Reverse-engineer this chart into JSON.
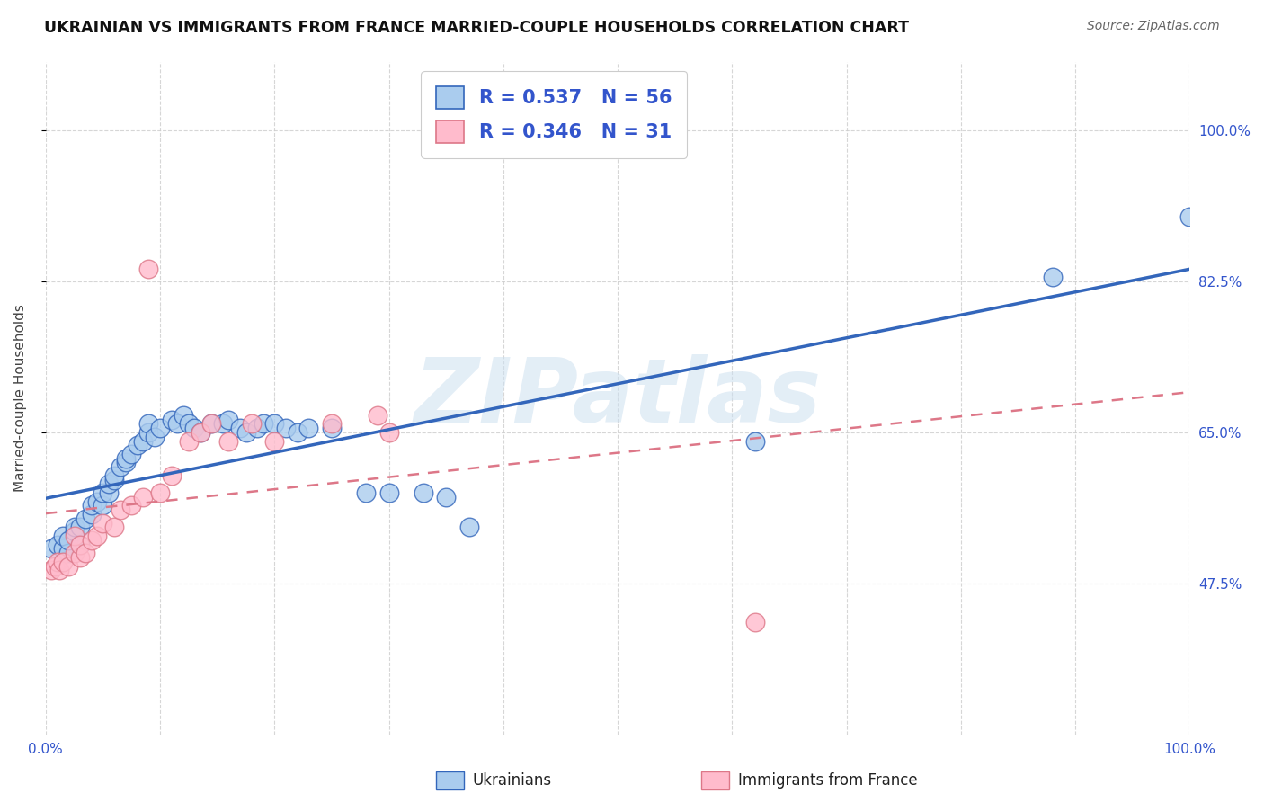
{
  "title": "UKRAINIAN VS IMMIGRANTS FROM FRANCE MARRIED-COUPLE HOUSEHOLDS CORRELATION CHART",
  "source": "Source: ZipAtlas.com",
  "ylabel": "Married-couple Households",
  "yticks_labels": [
    "47.5%",
    "65.0%",
    "82.5%",
    "100.0%"
  ],
  "ytick_vals": [
    0.475,
    0.65,
    0.825,
    1.0
  ],
  "xlim": [
    0.0,
    1.0
  ],
  "ylim": [
    0.3,
    1.08
  ],
  "blue_R": 0.537,
  "blue_N": 56,
  "pink_R": 0.346,
  "pink_N": 31,
  "blue_scatter_color": "#aaccee",
  "pink_scatter_color": "#ffbbcc",
  "blue_line_color": "#3366bb",
  "pink_line_color": "#dd7788",
  "legend_text_color": "#3355cc",
  "watermark_color": "#cce0f0",
  "background_color": "#ffffff",
  "grid_color": "#cccccc",
  "title_color": "#111111",
  "source_color": "#666666",
  "axis_label_color": "#3355cc",
  "ylabel_color": "#444444",
  "blue_scatter_x": [
    0.005,
    0.01,
    0.015,
    0.015,
    0.02,
    0.02,
    0.025,
    0.025,
    0.03,
    0.03,
    0.035,
    0.04,
    0.04,
    0.045,
    0.05,
    0.05,
    0.055,
    0.055,
    0.06,
    0.06,
    0.065,
    0.07,
    0.07,
    0.075,
    0.08,
    0.085,
    0.09,
    0.09,
    0.095,
    0.1,
    0.11,
    0.115,
    0.12,
    0.125,
    0.13,
    0.135,
    0.145,
    0.155,
    0.16,
    0.17,
    0.175,
    0.185,
    0.19,
    0.2,
    0.21,
    0.22,
    0.23,
    0.25,
    0.28,
    0.3,
    0.33,
    0.35,
    0.37,
    0.62,
    0.88,
    1.0
  ],
  "blue_scatter_y": [
    0.515,
    0.52,
    0.515,
    0.53,
    0.51,
    0.525,
    0.535,
    0.54,
    0.52,
    0.54,
    0.55,
    0.555,
    0.565,
    0.57,
    0.565,
    0.58,
    0.58,
    0.59,
    0.595,
    0.6,
    0.61,
    0.615,
    0.62,
    0.625,
    0.635,
    0.64,
    0.65,
    0.66,
    0.645,
    0.655,
    0.665,
    0.66,
    0.67,
    0.66,
    0.655,
    0.65,
    0.66,
    0.66,
    0.665,
    0.655,
    0.65,
    0.655,
    0.66,
    0.66,
    0.655,
    0.65,
    0.655,
    0.655,
    0.58,
    0.58,
    0.58,
    0.575,
    0.54,
    0.64,
    0.83,
    0.9
  ],
  "pink_scatter_x": [
    0.005,
    0.008,
    0.01,
    0.012,
    0.015,
    0.02,
    0.025,
    0.025,
    0.03,
    0.03,
    0.035,
    0.04,
    0.045,
    0.05,
    0.06,
    0.065,
    0.075,
    0.085,
    0.09,
    0.1,
    0.11,
    0.125,
    0.135,
    0.145,
    0.16,
    0.18,
    0.2,
    0.25,
    0.29,
    0.3,
    0.62
  ],
  "pink_scatter_y": [
    0.49,
    0.495,
    0.5,
    0.49,
    0.5,
    0.495,
    0.51,
    0.53,
    0.505,
    0.52,
    0.51,
    0.525,
    0.53,
    0.545,
    0.54,
    0.56,
    0.565,
    0.575,
    0.84,
    0.58,
    0.6,
    0.64,
    0.65,
    0.66,
    0.64,
    0.66,
    0.64,
    0.66,
    0.67,
    0.65,
    0.43
  ]
}
